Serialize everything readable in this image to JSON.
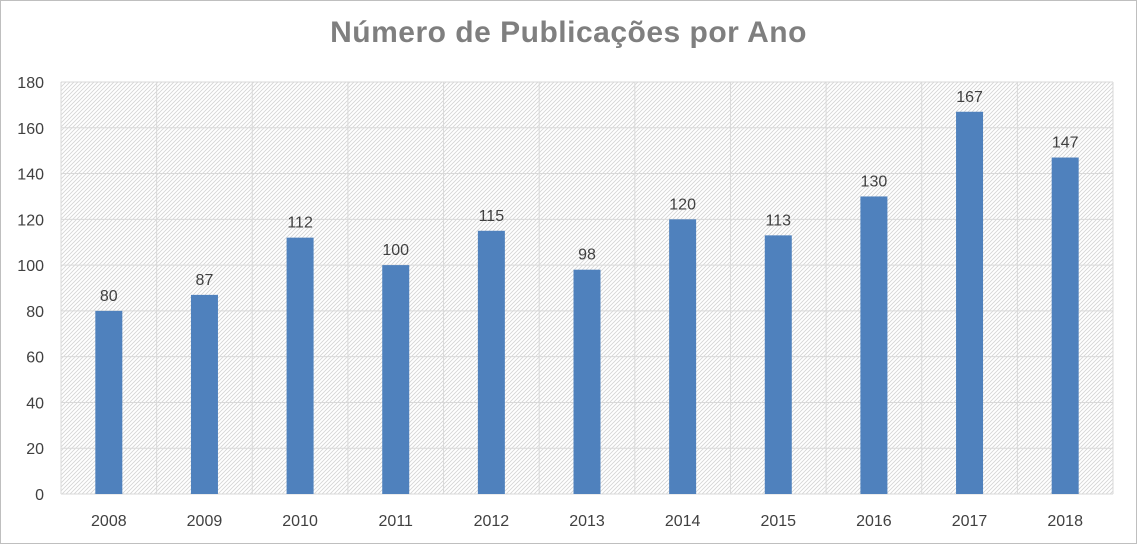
{
  "chart_data": {
    "type": "bar",
    "title": "Número de Publicações por Ano",
    "categories": [
      "2008",
      "2009",
      "2010",
      "2011",
      "2012",
      "2013",
      "2014",
      "2015",
      "2016",
      "2017",
      "2018"
    ],
    "values": [
      80,
      87,
      112,
      100,
      115,
      98,
      120,
      113,
      130,
      167,
      147
    ],
    "ylim": [
      0,
      180
    ],
    "yticks": [
      0,
      20,
      40,
      60,
      80,
      100,
      120,
      140,
      160,
      180
    ],
    "xlabel": "",
    "ylabel": "",
    "grid": true,
    "legend": "none",
    "data_labels": true,
    "colors": {
      "bar": "#4f81bd",
      "title": "#7f7f7f",
      "grid": "#d9d9d9",
      "hatch": "#d0d0d0",
      "text": "#404040"
    }
  }
}
